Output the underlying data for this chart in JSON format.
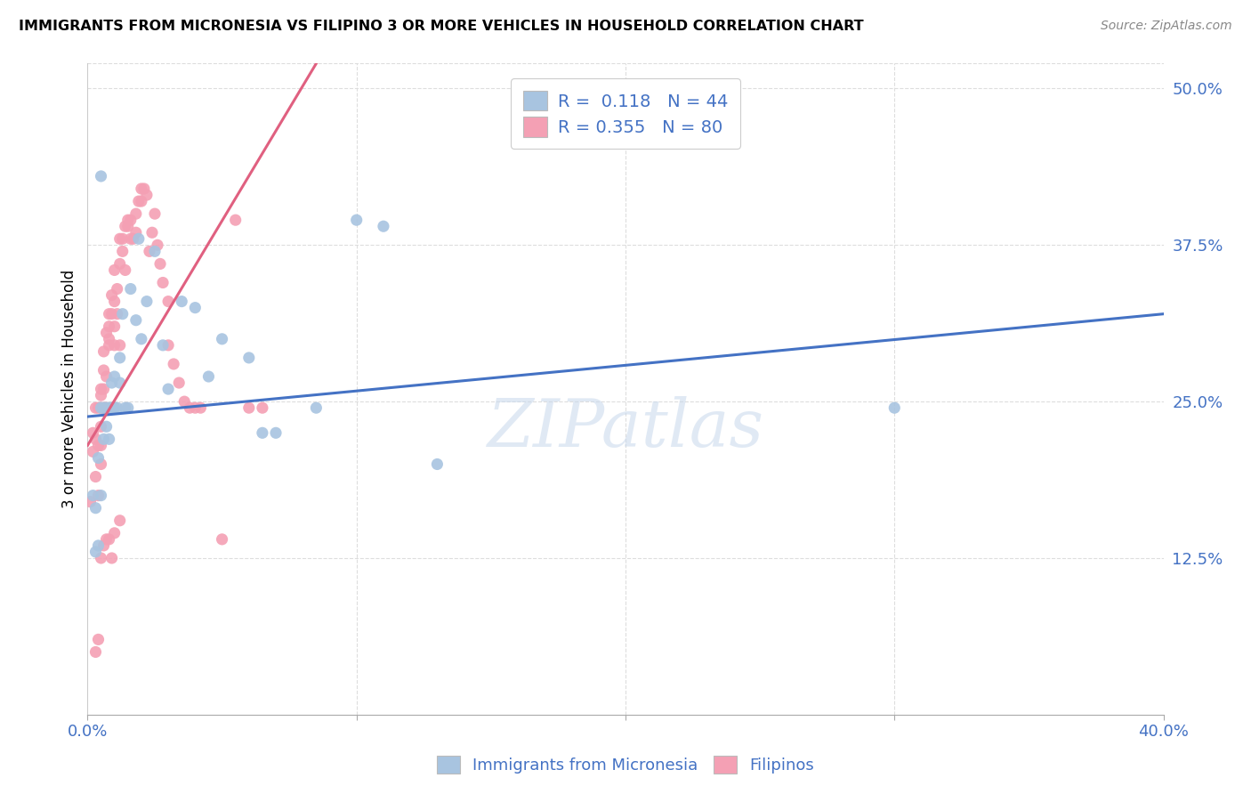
{
  "title": "IMMIGRANTS FROM MICRONESIA VS FILIPINO 3 OR MORE VEHICLES IN HOUSEHOLD CORRELATION CHART",
  "source": "Source: ZipAtlas.com",
  "ylabel": "3 or more Vehicles in Household",
  "xlim": [
    0.0,
    0.4
  ],
  "ylim": [
    0.0,
    0.52
  ],
  "blue_R": 0.118,
  "blue_N": 44,
  "pink_R": 0.355,
  "pink_N": 80,
  "blue_color": "#a8c4e0",
  "pink_color": "#f4a0b4",
  "blue_line_color": "#4472c4",
  "pink_line_color": "#e06080",
  "legend_label_blue": "Immigrants from Micronesia",
  "legend_label_pink": "Filipinos",
  "watermark": "ZIPatlas",
  "blue_line_x0": 0.0,
  "blue_line_y0": 0.238,
  "blue_line_x1": 0.4,
  "blue_line_y1": 0.32,
  "pink_line_x0": 0.0,
  "pink_line_y0": 0.215,
  "pink_line_x1": 0.085,
  "pink_line_y1": 0.52,
  "blue_scatter_x": [
    0.002,
    0.003,
    0.004,
    0.005,
    0.005,
    0.006,
    0.006,
    0.007,
    0.007,
    0.008,
    0.008,
    0.009,
    0.009,
    0.01,
    0.01,
    0.011,
    0.012,
    0.012,
    0.013,
    0.014,
    0.015,
    0.016,
    0.018,
    0.019,
    0.02,
    0.022,
    0.025,
    0.028,
    0.03,
    0.035,
    0.04,
    0.045,
    0.05,
    0.06,
    0.065,
    0.07,
    0.085,
    0.1,
    0.11,
    0.13,
    0.003,
    0.004,
    0.3,
    0.005
  ],
  "blue_scatter_y": [
    0.175,
    0.165,
    0.205,
    0.245,
    0.175,
    0.245,
    0.22,
    0.245,
    0.23,
    0.245,
    0.22,
    0.245,
    0.265,
    0.245,
    0.27,
    0.245,
    0.265,
    0.285,
    0.32,
    0.245,
    0.245,
    0.34,
    0.315,
    0.38,
    0.3,
    0.33,
    0.37,
    0.295,
    0.26,
    0.33,
    0.325,
    0.27,
    0.3,
    0.285,
    0.225,
    0.225,
    0.245,
    0.395,
    0.39,
    0.2,
    0.13,
    0.135,
    0.245,
    0.43
  ],
  "pink_scatter_x": [
    0.001,
    0.002,
    0.002,
    0.003,
    0.003,
    0.003,
    0.004,
    0.004,
    0.004,
    0.005,
    0.005,
    0.005,
    0.005,
    0.005,
    0.005,
    0.006,
    0.006,
    0.006,
    0.006,
    0.007,
    0.007,
    0.007,
    0.008,
    0.008,
    0.008,
    0.008,
    0.009,
    0.009,
    0.01,
    0.01,
    0.01,
    0.01,
    0.011,
    0.011,
    0.012,
    0.012,
    0.012,
    0.013,
    0.013,
    0.014,
    0.014,
    0.015,
    0.015,
    0.016,
    0.016,
    0.017,
    0.018,
    0.018,
    0.019,
    0.02,
    0.02,
    0.021,
    0.022,
    0.023,
    0.024,
    0.025,
    0.026,
    0.027,
    0.028,
    0.03,
    0.03,
    0.032,
    0.034,
    0.036,
    0.038,
    0.04,
    0.042,
    0.055,
    0.06,
    0.065,
    0.003,
    0.004,
    0.005,
    0.006,
    0.007,
    0.008,
    0.009,
    0.01,
    0.012,
    0.05
  ],
  "pink_scatter_y": [
    0.17,
    0.21,
    0.225,
    0.245,
    0.22,
    0.19,
    0.175,
    0.215,
    0.245,
    0.2,
    0.215,
    0.23,
    0.245,
    0.255,
    0.26,
    0.245,
    0.26,
    0.275,
    0.29,
    0.245,
    0.27,
    0.305,
    0.3,
    0.32,
    0.295,
    0.31,
    0.32,
    0.335,
    0.31,
    0.33,
    0.295,
    0.355,
    0.32,
    0.34,
    0.36,
    0.38,
    0.295,
    0.37,
    0.38,
    0.39,
    0.355,
    0.39,
    0.395,
    0.395,
    0.38,
    0.38,
    0.385,
    0.4,
    0.41,
    0.41,
    0.42,
    0.42,
    0.415,
    0.37,
    0.385,
    0.4,
    0.375,
    0.36,
    0.345,
    0.33,
    0.295,
    0.28,
    0.265,
    0.25,
    0.245,
    0.245,
    0.245,
    0.395,
    0.245,
    0.245,
    0.05,
    0.06,
    0.125,
    0.135,
    0.14,
    0.14,
    0.125,
    0.145,
    0.155,
    0.14
  ]
}
